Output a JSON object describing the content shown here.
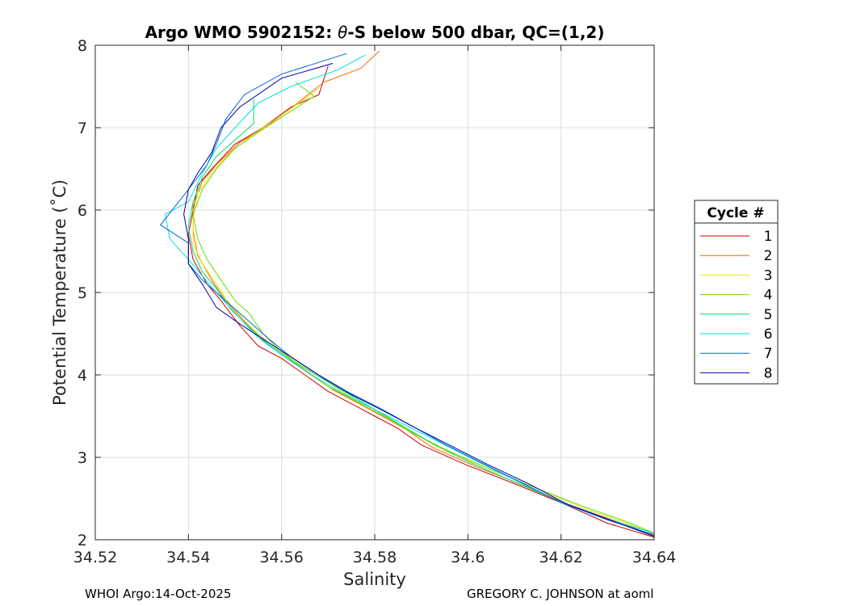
{
  "chart_data": {
    "type": "line",
    "title_prefix": "Argo WMO 5902152: ",
    "title_symbol": "θ",
    "title_suffix": "-S below 500 dbar,  QC=(1,2)",
    "xlabel": "Salinity",
    "ylabel": "Potential Temperature (˚C)",
    "xlim": [
      34.52,
      34.64
    ],
    "ylim": [
      2,
      8
    ],
    "xticks": [
      34.52,
      34.54,
      34.56,
      34.58,
      34.6,
      34.62,
      34.64
    ],
    "xtick_labels": [
      "34.52",
      "34.54",
      "34.56",
      "34.58",
      "34.6",
      "34.62",
      "34.64"
    ],
    "yticks": [
      2,
      3,
      4,
      5,
      6,
      7,
      8
    ],
    "ytick_labels": [
      "2",
      "3",
      "4",
      "5",
      "6",
      "7",
      "8"
    ],
    "grid": true,
    "legend": {
      "title": "Cycle #",
      "placement": "outside-right"
    },
    "series": [
      {
        "name": "1",
        "color": "#cc0000",
        "points": [
          [
            34.57,
            7.75
          ],
          [
            34.568,
            7.4
          ],
          [
            34.562,
            7.25
          ],
          [
            34.556,
            7.0
          ],
          [
            34.55,
            6.8
          ],
          [
            34.545,
            6.5
          ],
          [
            34.542,
            6.3
          ],
          [
            34.541,
            6.0
          ],
          [
            34.54,
            5.7
          ],
          [
            34.541,
            5.4
          ],
          [
            34.544,
            5.1
          ],
          [
            34.547,
            4.9
          ],
          [
            34.551,
            4.6
          ],
          [
            34.555,
            4.35
          ],
          [
            34.56,
            4.2
          ],
          [
            34.565,
            4.0
          ],
          [
            34.57,
            3.8
          ],
          [
            34.575,
            3.65
          ],
          [
            34.58,
            3.5
          ],
          [
            34.585,
            3.35
          ],
          [
            34.59,
            3.15
          ],
          [
            34.6,
            2.9
          ],
          [
            34.61,
            2.68
          ],
          [
            34.62,
            2.45
          ],
          [
            34.63,
            2.2
          ],
          [
            34.64,
            2.03
          ]
        ]
      },
      {
        "name": "2",
        "color": "#ff6600",
        "points": [
          [
            34.581,
            7.93
          ],
          [
            34.577,
            7.72
          ],
          [
            34.569,
            7.55
          ],
          [
            34.563,
            7.28
          ],
          [
            34.557,
            7.02
          ],
          [
            34.551,
            6.82
          ],
          [
            34.546,
            6.55
          ],
          [
            34.543,
            6.35
          ],
          [
            34.541,
            6.05
          ],
          [
            34.541,
            5.75
          ],
          [
            34.542,
            5.45
          ],
          [
            34.545,
            5.15
          ],
          [
            34.548,
            4.9
          ],
          [
            34.552,
            4.65
          ],
          [
            34.556,
            4.42
          ],
          [
            34.561,
            4.22
          ],
          [
            34.566,
            4.02
          ],
          [
            34.571,
            3.82
          ],
          [
            34.576,
            3.67
          ],
          [
            34.581,
            3.52
          ],
          [
            34.587,
            3.33
          ],
          [
            34.592,
            3.13
          ],
          [
            34.602,
            2.88
          ],
          [
            34.612,
            2.66
          ],
          [
            34.622,
            2.42
          ],
          [
            34.632,
            2.22
          ],
          [
            34.64,
            2.05
          ]
        ]
      },
      {
        "name": "3",
        "color": "#e6e600",
        "points": [
          [
            34.568,
            7.48
          ],
          [
            34.565,
            7.35
          ],
          [
            34.56,
            7.15
          ],
          [
            34.554,
            6.92
          ],
          [
            34.549,
            6.7
          ],
          [
            34.545,
            6.45
          ],
          [
            34.542,
            6.2
          ],
          [
            34.541,
            5.9
          ],
          [
            34.541,
            5.6
          ],
          [
            34.543,
            5.35
          ],
          [
            34.546,
            5.1
          ],
          [
            34.549,
            4.85
          ],
          [
            34.553,
            4.6
          ],
          [
            34.557,
            4.4
          ],
          [
            34.562,
            4.2
          ],
          [
            34.568,
            3.98
          ],
          [
            34.573,
            3.8
          ],
          [
            34.578,
            3.62
          ],
          [
            34.583,
            3.47
          ],
          [
            34.589,
            3.27
          ],
          [
            34.595,
            3.08
          ],
          [
            34.605,
            2.85
          ],
          [
            34.615,
            2.62
          ],
          [
            34.625,
            2.38
          ],
          [
            34.635,
            2.18
          ],
          [
            34.64,
            2.07
          ]
        ]
      },
      {
        "name": "4",
        "color": "#66dd00",
        "points": [
          [
            34.563,
            7.55
          ],
          [
            34.567,
            7.38
          ],
          [
            34.562,
            7.2
          ],
          [
            34.556,
            6.98
          ],
          [
            34.55,
            6.75
          ],
          [
            34.546,
            6.5
          ],
          [
            34.543,
            6.25
          ],
          [
            34.541,
            5.95
          ],
          [
            34.542,
            5.65
          ],
          [
            34.544,
            5.4
          ],
          [
            34.547,
            5.15
          ],
          [
            34.55,
            4.9
          ],
          [
            34.553,
            4.75
          ],
          [
            34.556,
            4.5
          ],
          [
            34.56,
            4.28
          ],
          [
            34.565,
            4.05
          ],
          [
            34.57,
            3.86
          ],
          [
            34.576,
            3.68
          ],
          [
            34.582,
            3.5
          ],
          [
            34.588,
            3.3
          ],
          [
            34.595,
            3.1
          ],
          [
            34.605,
            2.85
          ],
          [
            34.615,
            2.62
          ],
          [
            34.625,
            2.4
          ],
          [
            34.635,
            2.2
          ],
          [
            34.64,
            2.08
          ]
        ]
      },
      {
        "name": "5",
        "color": "#00dd66",
        "points": [
          [
            34.554,
            7.35
          ],
          [
            34.554,
            7.05
          ],
          [
            34.55,
            6.85
          ],
          [
            34.546,
            6.65
          ],
          [
            34.543,
            6.4
          ],
          [
            34.541,
            6.1
          ],
          [
            34.54,
            5.8
          ],
          [
            34.541,
            5.5
          ],
          [
            34.543,
            5.25
          ],
          [
            34.546,
            5.05
          ],
          [
            34.549,
            4.8
          ],
          [
            34.553,
            4.58
          ],
          [
            34.557,
            4.38
          ],
          [
            34.562,
            4.18
          ],
          [
            34.568,
            3.98
          ],
          [
            34.574,
            3.78
          ],
          [
            34.58,
            3.58
          ],
          [
            34.586,
            3.38
          ],
          [
            34.592,
            3.18
          ],
          [
            34.6,
            2.95
          ],
          [
            34.61,
            2.7
          ],
          [
            34.62,
            2.46
          ],
          [
            34.63,
            2.25
          ],
          [
            34.64,
            2.08
          ]
        ]
      },
      {
        "name": "6",
        "color": "#00dddd",
        "points": [
          [
            34.578,
            7.88
          ],
          [
            34.572,
            7.7
          ],
          [
            34.562,
            7.5
          ],
          [
            34.555,
            7.3
          ],
          [
            34.55,
            7.0
          ],
          [
            34.546,
            6.75
          ],
          [
            34.543,
            6.45
          ],
          [
            34.54,
            6.1
          ],
          [
            34.535,
            5.95
          ],
          [
            34.536,
            5.65
          ],
          [
            34.54,
            5.4
          ],
          [
            34.543,
            5.2
          ],
          [
            34.546,
            5.0
          ],
          [
            34.55,
            4.75
          ],
          [
            34.555,
            4.45
          ],
          [
            34.561,
            4.2
          ],
          [
            34.567,
            3.98
          ],
          [
            34.573,
            3.78
          ],
          [
            34.58,
            3.58
          ],
          [
            34.587,
            3.38
          ],
          [
            34.594,
            3.18
          ],
          [
            34.602,
            2.95
          ],
          [
            34.611,
            2.7
          ],
          [
            34.62,
            2.45
          ],
          [
            34.63,
            2.25
          ],
          [
            34.64,
            2.08
          ]
        ]
      },
      {
        "name": "7",
        "color": "#0066dd",
        "points": [
          [
            34.574,
            7.9
          ],
          [
            34.56,
            7.65
          ],
          [
            34.552,
            7.4
          ],
          [
            34.548,
            7.1
          ],
          [
            34.546,
            6.8
          ],
          [
            34.544,
            6.55
          ],
          [
            34.54,
            6.25
          ],
          [
            34.534,
            5.82
          ],
          [
            34.54,
            5.6
          ],
          [
            34.54,
            5.35
          ],
          [
            34.543,
            5.15
          ],
          [
            34.547,
            4.95
          ],
          [
            34.552,
            4.7
          ],
          [
            34.557,
            4.45
          ],
          [
            34.562,
            4.22
          ],
          [
            34.568,
            4.0
          ],
          [
            34.574,
            3.8
          ],
          [
            34.581,
            3.6
          ],
          [
            34.588,
            3.38
          ],
          [
            34.595,
            3.16
          ],
          [
            34.603,
            2.93
          ],
          [
            34.612,
            2.68
          ],
          [
            34.62,
            2.45
          ],
          [
            34.63,
            2.24
          ],
          [
            34.64,
            2.06
          ]
        ]
      },
      {
        "name": "8",
        "color": "#0000aa",
        "points": [
          [
            34.571,
            7.78
          ],
          [
            34.56,
            7.6
          ],
          [
            34.551,
            7.25
          ],
          [
            34.547,
            7.0
          ],
          [
            34.545,
            6.7
          ],
          [
            34.542,
            6.45
          ],
          [
            34.54,
            6.25
          ],
          [
            34.539,
            5.95
          ],
          [
            34.54,
            5.65
          ],
          [
            34.54,
            5.35
          ],
          [
            34.543,
            5.1
          ],
          [
            34.546,
            4.82
          ],
          [
            34.551,
            4.62
          ],
          [
            34.557,
            4.4
          ],
          [
            34.563,
            4.18
          ],
          [
            34.569,
            3.96
          ],
          [
            34.575,
            3.76
          ],
          [
            34.582,
            3.56
          ],
          [
            34.589,
            3.35
          ],
          [
            34.596,
            3.15
          ],
          [
            34.604,
            2.92
          ],
          [
            34.613,
            2.68
          ],
          [
            34.621,
            2.44
          ],
          [
            34.631,
            2.23
          ],
          [
            34.64,
            2.04
          ]
        ]
      }
    ]
  },
  "footer": {
    "left": "WHOI Argo:14-Oct-2025",
    "right": "GREGORY C. JOHNSON at aoml"
  }
}
